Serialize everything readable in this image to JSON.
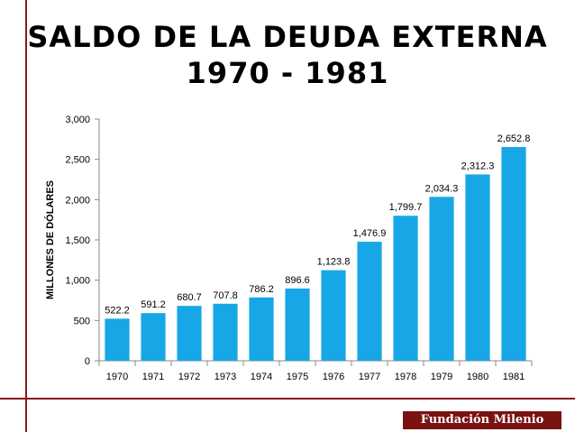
{
  "title": {
    "line1": "SALDO DE LA DEUDA EXTERNA",
    "line2": "1970 - 1981"
  },
  "brand": {
    "label": "Fundación Milenio",
    "background": "#7a1212"
  },
  "colors": {
    "bar": "#17a7e6",
    "frame": "#8b1a1a"
  },
  "chart_data": {
    "type": "bar",
    "title": "SALDO DE LA DEUDA EXTERNA 1970 - 1981",
    "xlabel": "",
    "ylabel": "MILLONES DE DÓLARES",
    "categories": [
      "1970",
      "1971",
      "1972",
      "1973",
      "1974",
      "1975",
      "1976",
      "1977",
      "1978",
      "1979",
      "1980",
      "1981"
    ],
    "values": [
      522.2,
      591.2,
      680.7,
      707.8,
      786.2,
      896.6,
      1123.8,
      1476.9,
      1799.7,
      2034.3,
      2312.3,
      2652.8
    ],
    "value_labels": [
      "522.2",
      "591.2",
      "680.7",
      "707.8",
      "786.2",
      "896.6",
      "1,123.8",
      "1,476.9",
      "1,799.7",
      "2,034.3",
      "2,312.3",
      "2,652.8"
    ],
    "yticks": [
      0,
      500,
      1000,
      1500,
      2000,
      2500,
      3000
    ],
    "ytick_labels": [
      "0",
      "500",
      "1,000",
      "1,500",
      "2,000",
      "2,500",
      "3,000"
    ],
    "ylim": [
      0,
      3000
    ],
    "grid": false,
    "legend": "none"
  }
}
